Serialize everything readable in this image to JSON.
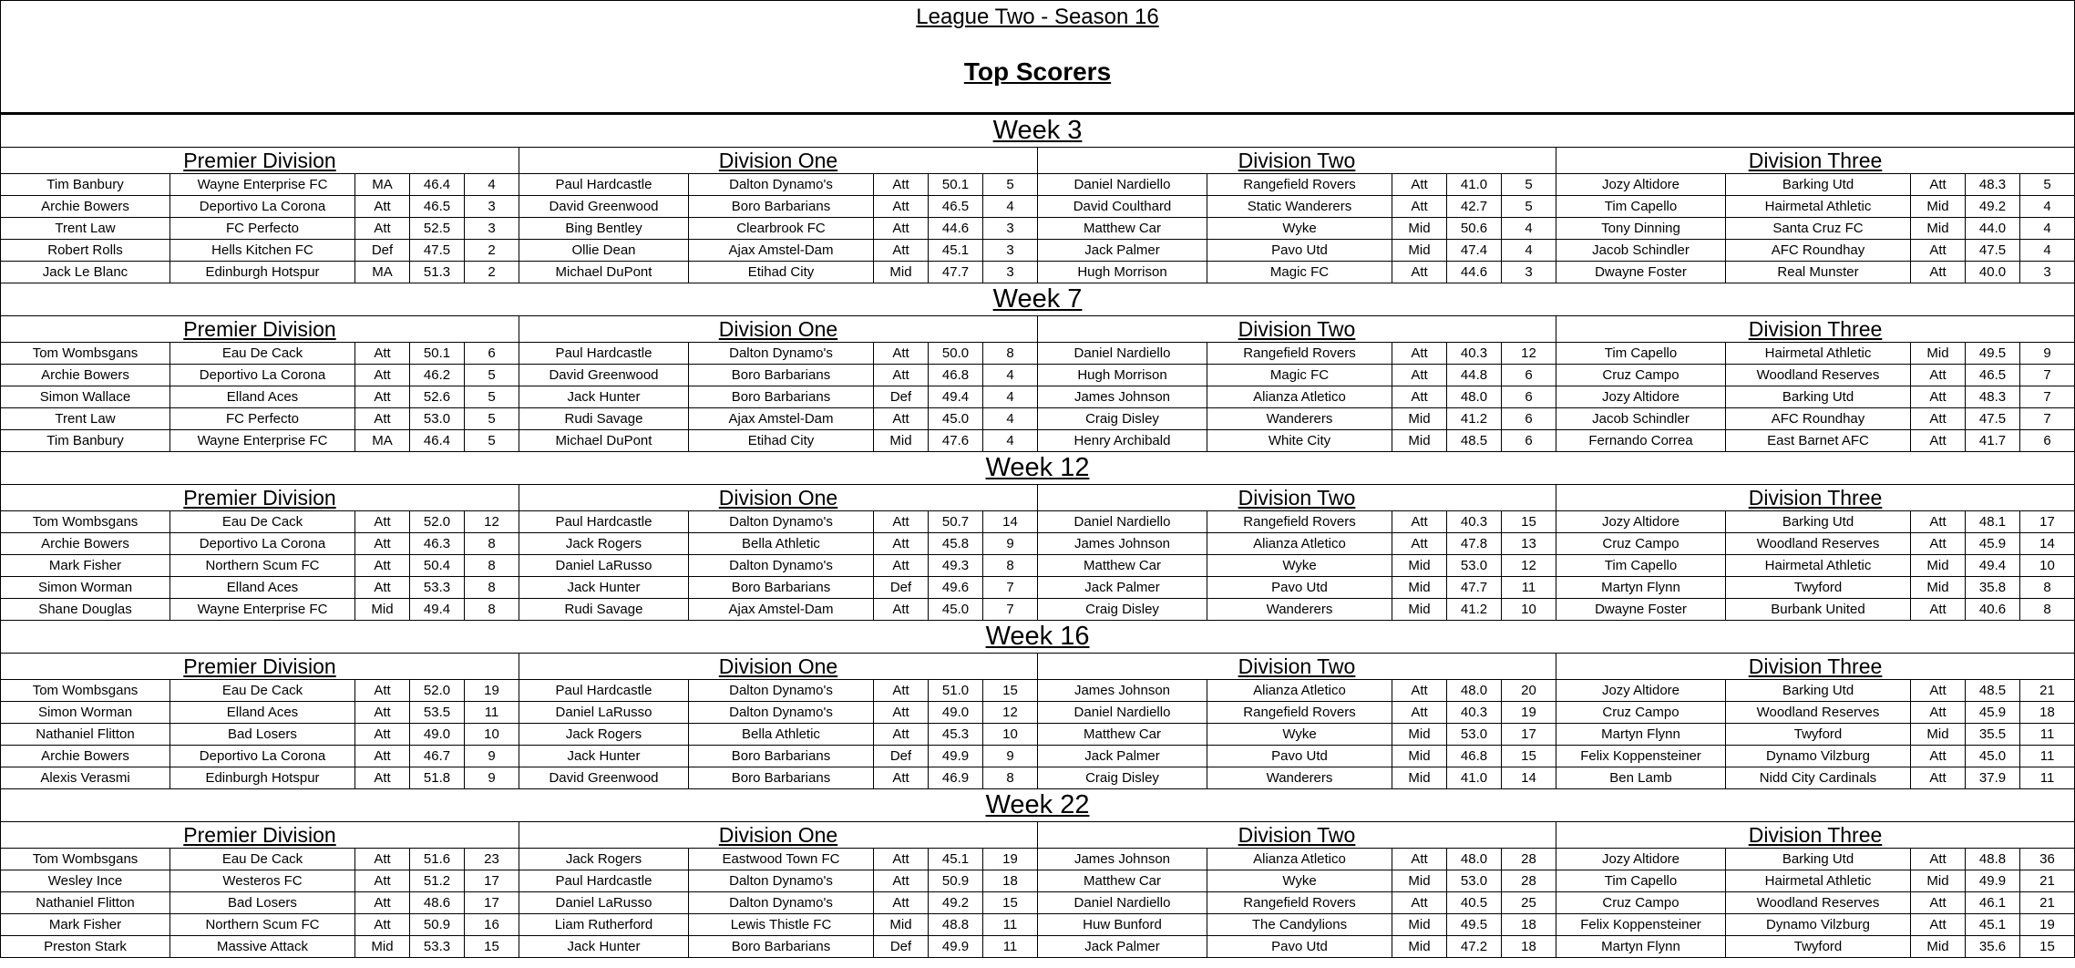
{
  "header": {
    "title": "League Two - Season 16",
    "subtitle": "Top Scorers"
  },
  "weeks": [
    {
      "label": "Week 3",
      "divisions": [
        {
          "name": "Premier Division",
          "rows": [
            [
              "Tim Banbury",
              "Wayne Enterprise FC",
              "MA",
              "46.4",
              "4"
            ],
            [
              "Archie Bowers",
              "Deportivo La Corona",
              "Att",
              "46.5",
              "3"
            ],
            [
              "Trent Law",
              "FC Perfecto",
              "Att",
              "52.5",
              "3"
            ],
            [
              "Robert Rolls",
              "Hells Kitchen FC",
              "Def",
              "47.5",
              "2"
            ],
            [
              "Jack Le Blanc",
              "Edinburgh Hotspur",
              "MA",
              "51.3",
              "2"
            ]
          ]
        },
        {
          "name": "Division One",
          "rows": [
            [
              "Paul Hardcastle",
              "Dalton Dynamo's",
              "Att",
              "50.1",
              "5"
            ],
            [
              "David Greenwood",
              "Boro Barbarians",
              "Att",
              "46.5",
              "4"
            ],
            [
              "Bing Bentley",
              "Clearbrook FC",
              "Att",
              "44.6",
              "3"
            ],
            [
              "Ollie Dean",
              "Ajax Amstel-Dam",
              "Att",
              "45.1",
              "3"
            ],
            [
              "Michael DuPont",
              "Etihad City",
              "Mid",
              "47.7",
              "3"
            ]
          ]
        },
        {
          "name": "Division Two",
          "rows": [
            [
              "Daniel Nardiello",
              "Rangefield Rovers",
              "Att",
              "41.0",
              "5"
            ],
            [
              "David Coulthard",
              "Static Wanderers",
              "Att",
              "42.7",
              "5"
            ],
            [
              "Matthew Car",
              "Wyke",
              "Mid",
              "50.6",
              "4"
            ],
            [
              "Jack Palmer",
              "Pavo Utd",
              "Mid",
              "47.4",
              "4"
            ],
            [
              "Hugh Morrison",
              "Magic FC",
              "Att",
              "44.6",
              "3"
            ]
          ]
        },
        {
          "name": "Division Three",
          "rows": [
            [
              "Jozy Altidore",
              "Barking Utd",
              "Att",
              "48.3",
              "5"
            ],
            [
              "Tim Capello",
              "Hairmetal Athletic",
              "Mid",
              "49.2",
              "4"
            ],
            [
              "Tony Dinning",
              "Santa Cruz FC",
              "Mid",
              "44.0",
              "4"
            ],
            [
              "Jacob Schindler",
              "AFC Roundhay",
              "Att",
              "47.5",
              "4"
            ],
            [
              "Dwayne Foster",
              "Real Munster",
              "Att",
              "40.0",
              "3"
            ]
          ]
        }
      ]
    },
    {
      "label": "Week 7",
      "divisions": [
        {
          "name": "Premier Division",
          "rows": [
            [
              "Tom Wombsgans",
              "Eau De Cack",
              "Att",
              "50.1",
              "6"
            ],
            [
              "Archie Bowers",
              "Deportivo La Corona",
              "Att",
              "46.2",
              "5"
            ],
            [
              "Simon Wallace",
              "Elland Aces",
              "Att",
              "52.6",
              "5"
            ],
            [
              "Trent Law",
              "FC Perfecto",
              "Att",
              "53.0",
              "5"
            ],
            [
              "Tim Banbury",
              "Wayne Enterprise FC",
              "MA",
              "46.4",
              "5"
            ]
          ]
        },
        {
          "name": "Division One",
          "rows": [
            [
              "Paul Hardcastle",
              "Dalton Dynamo's",
              "Att",
              "50.0",
              "8"
            ],
            [
              "David Greenwood",
              "Boro Barbarians",
              "Att",
              "46.8",
              "4"
            ],
            [
              "Jack Hunter",
              "Boro Barbarians",
              "Def",
              "49.4",
              "4"
            ],
            [
              "Rudi Savage",
              "Ajax Amstel-Dam",
              "Att",
              "45.0",
              "4"
            ],
            [
              "Michael DuPont",
              "Etihad City",
              "Mid",
              "47.6",
              "4"
            ]
          ]
        },
        {
          "name": "Division Two",
          "rows": [
            [
              "Daniel Nardiello",
              "Rangefield Rovers",
              "Att",
              "40.3",
              "12"
            ],
            [
              "Hugh Morrison",
              "Magic FC",
              "Att",
              "44.8",
              "6"
            ],
            [
              "James Johnson",
              "Alianza Atletico",
              "Att",
              "48.0",
              "6"
            ],
            [
              "Craig Disley",
              "Wanderers",
              "Mid",
              "41.2",
              "6"
            ],
            [
              "Henry Archibald",
              "White City",
              "Mid",
              "48.5",
              "6"
            ]
          ]
        },
        {
          "name": "Division Three",
          "rows": [
            [
              "Tim Capello",
              "Hairmetal Athletic",
              "Mid",
              "49.5",
              "9"
            ],
            [
              "Cruz Campo",
              "Woodland Reserves",
              "Att",
              "46.5",
              "7"
            ],
            [
              "Jozy Altidore",
              "Barking Utd",
              "Att",
              "48.3",
              "7"
            ],
            [
              "Jacob Schindler",
              "AFC Roundhay",
              "Att",
              "47.5",
              "7"
            ],
            [
              "Fernando Correa",
              "East Barnet AFC",
              "Att",
              "41.7",
              "6"
            ]
          ]
        }
      ]
    },
    {
      "label": "Week 12",
      "divisions": [
        {
          "name": "Premier Division",
          "rows": [
            [
              "Tom Wombsgans",
              "Eau De Cack",
              "Att",
              "52.0",
              "12"
            ],
            [
              "Archie Bowers",
              "Deportivo La Corona",
              "Att",
              "46.3",
              "8"
            ],
            [
              "Mark Fisher",
              "Northern Scum FC",
              "Att",
              "50.4",
              "8"
            ],
            [
              "Simon Worman",
              "Elland Aces",
              "Att",
              "53.3",
              "8"
            ],
            [
              "Shane Douglas",
              "Wayne Enterprise FC",
              "Mid",
              "49.4",
              "8"
            ]
          ]
        },
        {
          "name": "Division One",
          "rows": [
            [
              "Paul Hardcastle",
              "Dalton Dynamo's",
              "Att",
              "50.7",
              "14"
            ],
            [
              "Jack Rogers",
              "Bella Athletic",
              "Att",
              "45.8",
              "9"
            ],
            [
              "Daniel LaRusso",
              "Dalton Dynamo's",
              "Att",
              "49.3",
              "8"
            ],
            [
              "Jack Hunter",
              "Boro Barbarians",
              "Def",
              "49.6",
              "7"
            ],
            [
              "Rudi Savage",
              "Ajax Amstel-Dam",
              "Att",
              "45.0",
              "7"
            ]
          ]
        },
        {
          "name": "Division Two",
          "rows": [
            [
              "Daniel Nardiello",
              "Rangefield Rovers",
              "Att",
              "40.3",
              "15"
            ],
            [
              "James Johnson",
              "Alianza Atletico",
              "Att",
              "47.8",
              "13"
            ],
            [
              "Matthew Car",
              "Wyke",
              "Mid",
              "53.0",
              "12"
            ],
            [
              "Jack Palmer",
              "Pavo Utd",
              "Mid",
              "47.7",
              "11"
            ],
            [
              "Craig Disley",
              "Wanderers",
              "Mid",
              "41.2",
              "10"
            ]
          ]
        },
        {
          "name": "Division Three",
          "rows": [
            [
              "Jozy Altidore",
              "Barking Utd",
              "Att",
              "48.1",
              "17"
            ],
            [
              "Cruz Campo",
              "Woodland Reserves",
              "Att",
              "45.9",
              "14"
            ],
            [
              "Tim Capello",
              "Hairmetal Athletic",
              "Mid",
              "49.4",
              "10"
            ],
            [
              "Martyn Flynn",
              "Twyford",
              "Mid",
              "35.8",
              "8"
            ],
            [
              "Dwayne Foster",
              "Burbank United",
              "Att",
              "40.6",
              "8"
            ]
          ]
        }
      ]
    },
    {
      "label": "Week 16",
      "divisions": [
        {
          "name": "Premier Division",
          "rows": [
            [
              "Tom Wombsgans",
              "Eau De Cack",
              "Att",
              "52.0",
              "19"
            ],
            [
              "Simon Worman",
              "Elland Aces",
              "Att",
              "53.5",
              "11"
            ],
            [
              "Nathaniel Flitton",
              "Bad Losers",
              "Att",
              "49.0",
              "10"
            ],
            [
              "Archie Bowers",
              "Deportivo La Corona",
              "Att",
              "46.7",
              "9"
            ],
            [
              "Alexis Verasmi",
              "Edinburgh Hotspur",
              "Att",
              "51.8",
              "9"
            ]
          ]
        },
        {
          "name": "Division One",
          "rows": [
            [
              "Paul Hardcastle",
              "Dalton Dynamo's",
              "Att",
              "51.0",
              "15"
            ],
            [
              "Daniel LaRusso",
              "Dalton Dynamo's",
              "Att",
              "49.0",
              "12"
            ],
            [
              "Jack Rogers",
              "Bella Athletic",
              "Att",
              "45.3",
              "10"
            ],
            [
              "Jack Hunter",
              "Boro Barbarians",
              "Def",
              "49.9",
              "9"
            ],
            [
              "David Greenwood",
              "Boro Barbarians",
              "Att",
              "46.9",
              "8"
            ]
          ]
        },
        {
          "name": "Division Two",
          "rows": [
            [
              "James Johnson",
              "Alianza Atletico",
              "Att",
              "48.0",
              "20"
            ],
            [
              "Daniel Nardiello",
              "Rangefield Rovers",
              "Att",
              "40.3",
              "19"
            ],
            [
              "Matthew Car",
              "Wyke",
              "Mid",
              "53.0",
              "17"
            ],
            [
              "Jack Palmer",
              "Pavo Utd",
              "Mid",
              "46.8",
              "15"
            ],
            [
              "Craig Disley",
              "Wanderers",
              "Mid",
              "41.0",
              "14"
            ]
          ]
        },
        {
          "name": "Division Three",
          "rows": [
            [
              "Jozy Altidore",
              "Barking Utd",
              "Att",
              "48.5",
              "21"
            ],
            [
              "Cruz Campo",
              "Woodland Reserves",
              "Att",
              "45.9",
              "18"
            ],
            [
              "Martyn Flynn",
              "Twyford",
              "Mid",
              "35.5",
              "11"
            ],
            [
              "Felix Koppensteiner",
              "Dynamo Vilzburg",
              "Att",
              "45.0",
              "11"
            ],
            [
              "Ben Lamb",
              "Nidd City Cardinals",
              "Att",
              "37.9",
              "11"
            ]
          ]
        }
      ]
    },
    {
      "label": "Week 22",
      "divisions": [
        {
          "name": "Premier Division",
          "rows": [
            [
              "Tom Wombsgans",
              "Eau De Cack",
              "Att",
              "51.6",
              "23"
            ],
            [
              "Wesley Ince",
              "Westeros FC",
              "Att",
              "51.2",
              "17"
            ],
            [
              "Nathaniel Flitton",
              "Bad Losers",
              "Att",
              "48.6",
              "17"
            ],
            [
              "Mark Fisher",
              "Northern Scum FC",
              "Att",
              "50.9",
              "16"
            ],
            [
              "Preston Stark",
              "Massive Attack",
              "Mid",
              "53.3",
              "15"
            ]
          ]
        },
        {
          "name": "Division One",
          "rows": [
            [
              "Jack Rogers",
              "Eastwood Town FC",
              "Att",
              "45.1",
              "19"
            ],
            [
              "Paul Hardcastle",
              "Dalton Dynamo's",
              "Att",
              "50.9",
              "18"
            ],
            [
              "Daniel LaRusso",
              "Dalton Dynamo's",
              "Att",
              "49.2",
              "15"
            ],
            [
              "Liam Rutherford",
              "Lewis Thistle FC",
              "Mid",
              "48.8",
              "11"
            ],
            [
              "Jack Hunter",
              "Boro Barbarians",
              "Def",
              "49.9",
              "11"
            ]
          ]
        },
        {
          "name": "Division Two",
          "rows": [
            [
              "James Johnson",
              "Alianza Atletico",
              "Att",
              "48.0",
              "28"
            ],
            [
              "Matthew Car",
              "Wyke",
              "Mid",
              "53.0",
              "28"
            ],
            [
              "Daniel Nardiello",
              "Rangefield Rovers",
              "Att",
              "40.5",
              "25"
            ],
            [
              "Huw Bunford",
              "The Candylions",
              "Mid",
              "49.5",
              "18"
            ],
            [
              "Jack Palmer",
              "Pavo Utd",
              "Mid",
              "47.2",
              "18"
            ]
          ]
        },
        {
          "name": "Division Three",
          "rows": [
            [
              "Jozy Altidore",
              "Barking Utd",
              "Att",
              "48.8",
              "36"
            ],
            [
              "Tim Capello",
              "Hairmetal Athletic",
              "Mid",
              "49.9",
              "21"
            ],
            [
              "Cruz Campo",
              "Woodland Reserves",
              "Att",
              "46.1",
              "21"
            ],
            [
              "Felix Koppensteiner",
              "Dynamo Vilzburg",
              "Att",
              "45.1",
              "19"
            ],
            [
              "Martyn Flynn",
              "Twyford",
              "Mid",
              "35.6",
              "15"
            ]
          ]
        }
      ]
    }
  ]
}
